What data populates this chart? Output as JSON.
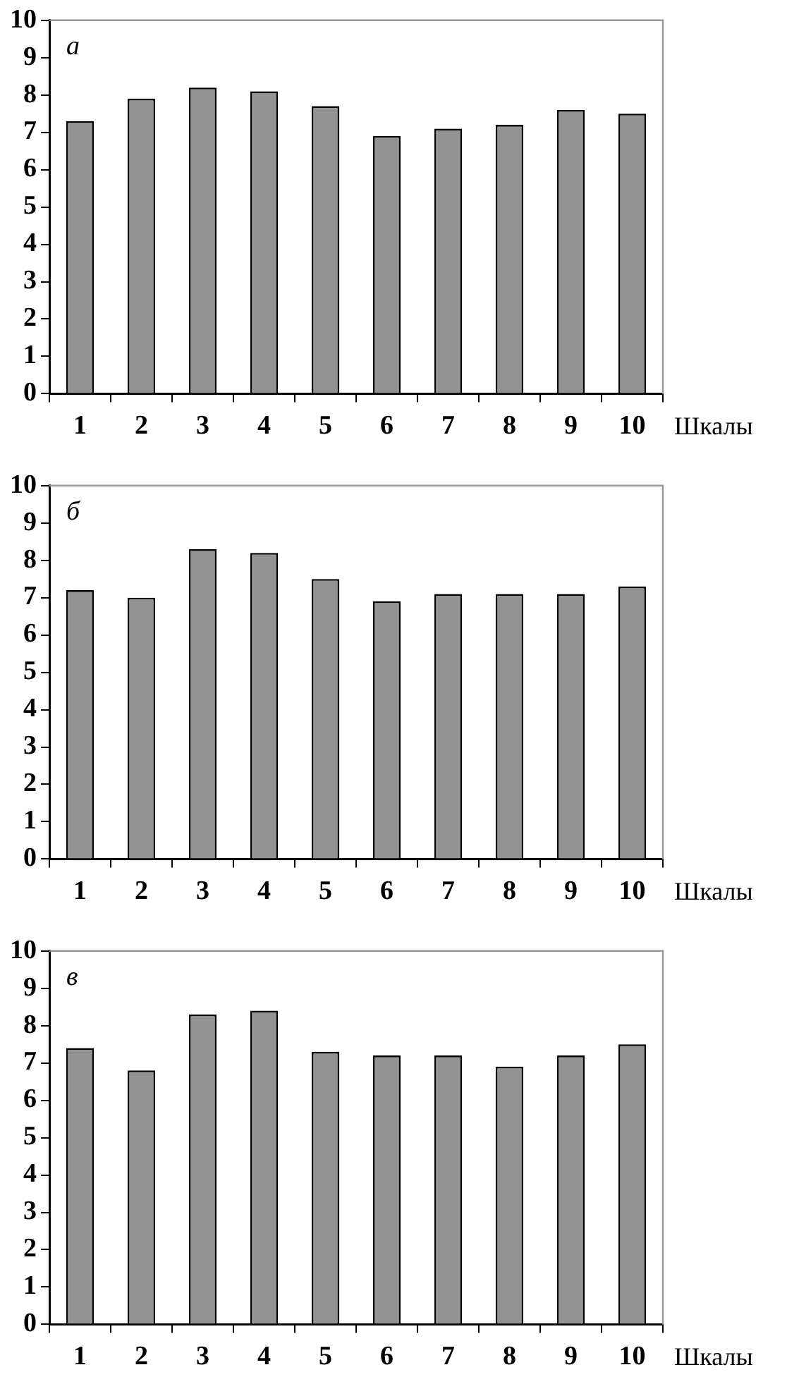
{
  "chart_data": [
    {
      "type": "bar",
      "title": "а",
      "xlabel": "Шкалы",
      "categories": [
        "1",
        "2",
        "3",
        "4",
        "5",
        "6",
        "7",
        "8",
        "9",
        "10"
      ],
      "color": "#939393",
      "values": [
        7.3,
        7.9,
        8.2,
        8.1,
        7.7,
        6.9,
        7.1,
        7.2,
        7.6,
        7.5
      ],
      "ylim": [
        0,
        10
      ],
      "yticks": [
        0,
        1,
        2,
        3,
        4,
        5,
        6,
        7,
        8,
        9,
        10
      ]
    },
    {
      "type": "bar",
      "title": "б",
      "xlabel": "Шкалы",
      "categories": [
        "1",
        "2",
        "3",
        "4",
        "5",
        "6",
        "7",
        "8",
        "9",
        "10"
      ],
      "color": "#939393",
      "values": [
        7.2,
        7.0,
        8.3,
        8.2,
        7.5,
        6.9,
        7.1,
        7.1,
        7.1,
        7.3
      ],
      "ylim": [
        0,
        10
      ],
      "yticks": [
        0,
        1,
        2,
        3,
        4,
        5,
        6,
        7,
        8,
        9,
        10
      ]
    },
    {
      "type": "bar",
      "title": "в",
      "xlabel": "Шкалы",
      "categories": [
        "1",
        "2",
        "3",
        "4",
        "5",
        "6",
        "7",
        "8",
        "9",
        "10"
      ],
      "color": "#939393",
      "values": [
        7.4,
        6.8,
        8.3,
        8.4,
        7.3,
        7.2,
        7.2,
        6.9,
        7.2,
        7.5
      ],
      "ylim": [
        0,
        10
      ],
      "yticks": [
        0,
        1,
        2,
        3,
        4,
        5,
        6,
        7,
        8,
        9,
        10
      ]
    }
  ]
}
